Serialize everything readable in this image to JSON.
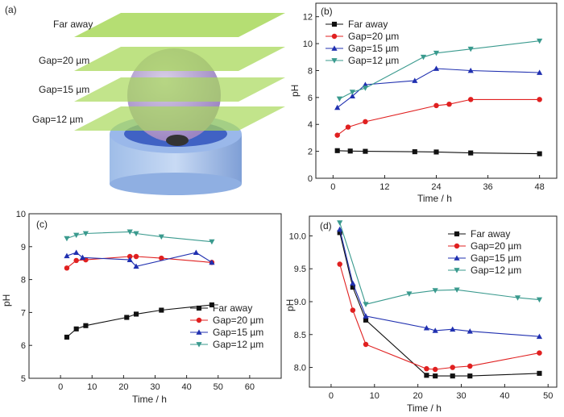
{
  "figure": {
    "panel_a": {
      "label": "(a)",
      "planes": [
        "Far away",
        "Gap=20 µm",
        "Gap=15 µm",
        "Gap=12 µm"
      ],
      "colors": {
        "plane": "#a8d85a",
        "sphere": "#b8a8d0",
        "base": "#7fa4e0",
        "base_top": "#4568c8",
        "tip": "#333333"
      }
    },
    "series_colors": {
      "Far away": "#111111",
      "Gap=20 µm": "#e02020",
      "Gap=15 µm": "#2030b0",
      "Gap=12 µm": "#3a9a8e"
    }
  },
  "chart_data": [
    {
      "panel": "(b)",
      "type": "line",
      "xlabel": "Time / h",
      "ylabel": "pH",
      "xlim": [
        -4,
        52
      ],
      "ylim": [
        0,
        13
      ],
      "xticks": [
        0,
        12,
        24,
        36,
        48
      ],
      "yticks": [
        0,
        2,
        4,
        6,
        8,
        10,
        12
      ],
      "legend_position": "top-left",
      "series": [
        {
          "name": "Far away",
          "marker": "square",
          "x": [
            1,
            4,
            7.5,
            19,
            24,
            32,
            48
          ],
          "y": [
            2.05,
            2.02,
            2.0,
            1.97,
            1.95,
            1.88,
            1.82
          ]
        },
        {
          "name": "Gap=20 µm",
          "marker": "circle",
          "x": [
            1,
            3.5,
            7.5,
            24,
            27,
            32,
            48
          ],
          "y": [
            3.2,
            3.8,
            4.2,
            5.4,
            5.5,
            5.85,
            5.85
          ]
        },
        {
          "name": "Gap=15 µm",
          "marker": "triangle-up",
          "x": [
            1,
            4.5,
            7.5,
            19,
            24,
            32,
            48
          ],
          "y": [
            5.25,
            6.1,
            6.95,
            7.25,
            8.15,
            8.0,
            7.85
          ]
        },
        {
          "name": "Gap=12 µm",
          "marker": "triangle-down",
          "x": [
            1.5,
            4.5,
            7.5,
            21,
            24,
            32,
            48
          ],
          "y": [
            5.9,
            6.4,
            6.7,
            9.0,
            9.3,
            9.6,
            10.2
          ]
        }
      ]
    },
    {
      "panel": "(c)",
      "type": "line",
      "xlabel": "Time / h",
      "ylabel": "pH",
      "xlim": [
        -10,
        70
      ],
      "ylim": [
        5,
        10
      ],
      "xticks": [
        0,
        10,
        20,
        30,
        40,
        50,
        60
      ],
      "yticks": [
        5,
        6,
        7,
        8,
        9,
        10
      ],
      "legend_position": "bottom-right",
      "series": [
        {
          "name": "Far away",
          "marker": "square",
          "x": [
            2,
            5,
            8,
            21,
            24,
            32,
            48
          ],
          "y": [
            6.25,
            6.5,
            6.6,
            6.85,
            6.95,
            7.07,
            7.23
          ]
        },
        {
          "name": "Gap=20 µm",
          "marker": "circle",
          "x": [
            2,
            5,
            8,
            22,
            24,
            32,
            48
          ],
          "y": [
            8.35,
            8.58,
            8.6,
            8.7,
            8.7,
            8.65,
            8.52
          ]
        },
        {
          "name": "Gap=15 µm",
          "marker": "triangle-up",
          "x": [
            2,
            5,
            7,
            22,
            24,
            43,
            48
          ],
          "y": [
            8.72,
            8.82,
            8.67,
            8.6,
            8.4,
            8.82,
            8.52
          ]
        },
        {
          "name": "Gap=12 µm",
          "marker": "triangle-down",
          "x": [
            2,
            5,
            8,
            22,
            24,
            32,
            48
          ],
          "y": [
            9.25,
            9.35,
            9.4,
            9.45,
            9.4,
            9.3,
            9.15
          ]
        }
      ]
    },
    {
      "panel": "(d)",
      "type": "line",
      "xlabel": "Time / h",
      "ylabel": "pH",
      "xlim": [
        -5,
        52
      ],
      "ylim": [
        7.7,
        10.3
      ],
      "xticks": [
        0,
        10,
        20,
        30,
        40,
        50
      ],
      "yticks": [
        8.0,
        8.5,
        9.0,
        9.5,
        10.0
      ],
      "ytick_labels": [
        "8.0",
        "8.5",
        "9.0",
        "9.5",
        "10.0"
      ],
      "legend_position": "top-right",
      "series": [
        {
          "name": "Far away",
          "marker": "square",
          "x": [
            2,
            5,
            8,
            22,
            24,
            28,
            32,
            48
          ],
          "y": [
            10.05,
            9.22,
            8.72,
            7.88,
            7.87,
            7.87,
            7.87,
            7.91
          ]
        },
        {
          "name": "Gap=20 µm",
          "marker": "circle",
          "x": [
            2,
            5,
            8,
            22,
            24,
            28,
            32,
            48
          ],
          "y": [
            9.57,
            8.87,
            8.35,
            7.98,
            7.97,
            8.0,
            8.02,
            8.22
          ]
        },
        {
          "name": "Gap=15 µm",
          "marker": "triangle-up",
          "x": [
            2,
            5,
            8,
            22,
            24,
            28,
            32,
            48
          ],
          "y": [
            10.1,
            9.28,
            8.78,
            8.6,
            8.56,
            8.58,
            8.55,
            8.47
          ]
        },
        {
          "name": "Gap=12 µm",
          "marker": "triangle-down",
          "x": [
            2,
            8,
            18,
            24,
            29,
            43,
            48
          ],
          "y": [
            10.2,
            8.96,
            9.12,
            9.17,
            9.18,
            9.06,
            9.03
          ]
        }
      ]
    }
  ]
}
